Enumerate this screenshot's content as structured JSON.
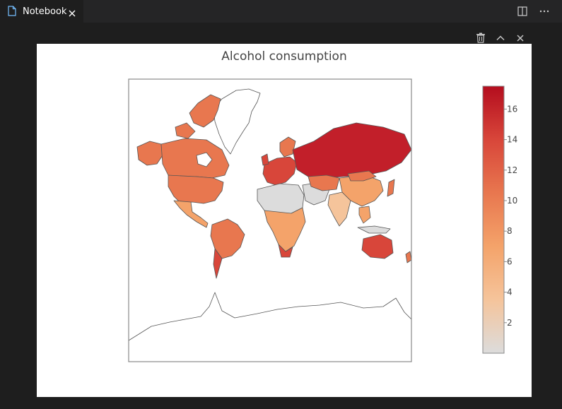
{
  "editor": {
    "tab": {
      "label": "Notebook"
    }
  },
  "plot": {
    "title": "Alcohol consumption",
    "colorbar": {
      "ticks": [
        "2",
        "4",
        "6",
        "8",
        "10",
        "12",
        "14",
        "16"
      ]
    }
  },
  "chart_data": {
    "type": "choropleth",
    "title": "Alcohol consumption",
    "projection": "mercator",
    "colorbar_range": [
      0,
      17.5
    ],
    "colorbar_ticks": [
      2,
      4,
      6,
      8,
      10,
      12,
      14,
      16
    ],
    "colorscale": [
      "#dcdcdc",
      "#f5c49b",
      "#f4a36a",
      "#e8774f",
      "#d8463a",
      "#b40d1e"
    ],
    "regions": [
      {
        "name": "Russia",
        "value": 15
      },
      {
        "name": "Greenland",
        "value": null
      },
      {
        "name": "Canada",
        "value": 10
      },
      {
        "name": "United States",
        "value": 9
      },
      {
        "name": "Mexico",
        "value": 7
      },
      {
        "name": "Brazil",
        "value": 9
      },
      {
        "name": "Argentina",
        "value": 10
      },
      {
        "name": "Australia",
        "value": 10
      },
      {
        "name": "China",
        "value": 6
      },
      {
        "name": "India",
        "value": 4
      },
      {
        "name": "Europe",
        "value": 12
      },
      {
        "name": "North Africa",
        "value": 1
      },
      {
        "name": "Antarctica",
        "value": null
      }
    ]
  }
}
